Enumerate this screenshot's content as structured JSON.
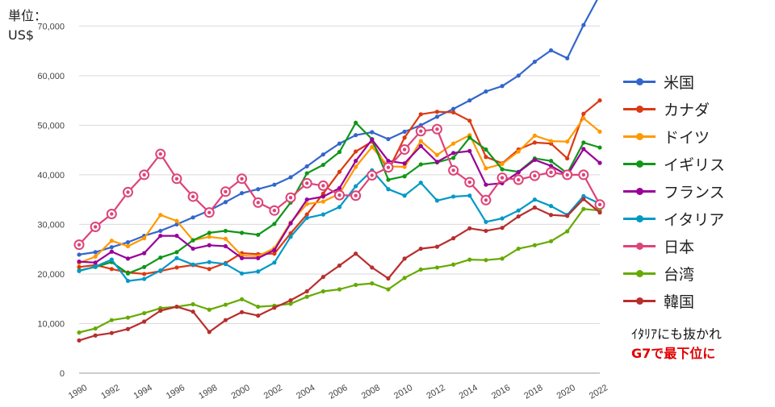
{
  "unit_label": {
    "line1": "単位：",
    "line2": "US$"
  },
  "note": {
    "line1": "ｲﾀﾘｱにも抜かれ",
    "line2": "G7で最下位に"
  },
  "chart_data": {
    "type": "line",
    "title": "",
    "xlabel": "",
    "ylabel": "",
    "x": [
      1990,
      1991,
      1992,
      1993,
      1994,
      1995,
      1996,
      1997,
      1998,
      1999,
      2000,
      2001,
      2002,
      2003,
      2004,
      2005,
      2006,
      2007,
      2008,
      2009,
      2010,
      2011,
      2012,
      2013,
      2014,
      2015,
      2016,
      2017,
      2018,
      2019,
      2020,
      2021,
      2022
    ],
    "xlim": [
      1990,
      2022
    ],
    "ylim": [
      0,
      72000
    ],
    "y_ticks": [
      0,
      10000,
      20000,
      30000,
      40000,
      50000,
      60000,
      70000
    ],
    "y_tick_labels": [
      "0",
      "10,000",
      "20,000",
      "30,000",
      "40,000",
      "50,000",
      "60,000",
      "70,000"
    ],
    "x_ticks": [
      1990,
      1992,
      1994,
      1996,
      1998,
      2000,
      2002,
      2004,
      2006,
      2008,
      2010,
      2012,
      2014,
      2016,
      2018,
      2020,
      2022
    ],
    "x_tick_labels": [
      "1990",
      "1992",
      "1994",
      "1996",
      "1998",
      "2000",
      "2002",
      "2004",
      "2006",
      "2008",
      "2010",
      "2012",
      "2014",
      "2016",
      "2018",
      "2020",
      "2022"
    ],
    "grid": true,
    "legend_position": "right",
    "series": [
      {
        "name": "米国",
        "color": "#3366cc",
        "values": [
          23900,
          24400,
          25400,
          26400,
          27700,
          28700,
          30000,
          31400,
          32800,
          34500,
          36300,
          37100,
          38000,
          39500,
          41700,
          44100,
          46300,
          48000,
          48600,
          47200,
          48700,
          50000,
          51700,
          53300,
          55000,
          56800,
          57900,
          60000,
          62800,
          65100,
          63500,
          70200,
          76300
        ]
      },
      {
        "name": "カナダ",
        "color": "#dc3912",
        "values": [
          21400,
          21800,
          21000,
          20300,
          20000,
          20600,
          21300,
          21800,
          21000,
          22200,
          24200,
          24000,
          24100,
          28200,
          32000,
          36200,
          40600,
          44700,
          46700,
          40900,
          47500,
          52200,
          52700,
          52600,
          50900,
          43600,
          42300,
          45100,
          46500,
          46300,
          43300,
          52300,
          55000
        ]
      },
      {
        "name": "ドイツ",
        "color": "#ff9900",
        "values": [
          22200,
          23500,
          26700,
          25600,
          27200,
          31900,
          30700,
          26800,
          27500,
          27100,
          23700,
          23600,
          25200,
          30400,
          34100,
          34600,
          36200,
          41600,
          45600,
          41700,
          41600,
          46800,
          44000,
          46300,
          48000,
          41300,
          42200,
          44700,
          47900,
          46800,
          46700,
          51400,
          48700
        ]
      },
      {
        "name": "イギリス",
        "color": "#109618",
        "values": [
          20700,
          21400,
          22400,
          20100,
          21400,
          23300,
          24400,
          26800,
          28300,
          28700,
          28300,
          27900,
          30100,
          34400,
          40300,
          42000,
          44600,
          50500,
          47200,
          39000,
          39700,
          42100,
          42500,
          43400,
          47500,
          45100,
          41100,
          40600,
          43300,
          42800,
          40300,
          46500,
          45500
        ]
      },
      {
        "name": "フランス",
        "color": "#990099",
        "values": [
          22500,
          22300,
          24500,
          23100,
          24200,
          27700,
          27700,
          25100,
          25800,
          25600,
          23200,
          23200,
          24800,
          30200,
          35000,
          35600,
          37300,
          42800,
          47100,
          42800,
          42300,
          45800,
          42600,
          44400,
          44800,
          38000,
          38300,
          40500,
          43000,
          41800,
          39900,
          45200,
          42400
        ]
      },
      {
        "name": "イタリア",
        "color": "#0099c6",
        "values": [
          20600,
          21500,
          22900,
          18600,
          19000,
          20700,
          23200,
          21900,
          22400,
          22000,
          20100,
          20500,
          22300,
          27500,
          31300,
          32000,
          33500,
          37700,
          40900,
          37100,
          35800,
          38400,
          34800,
          35600,
          35800,
          30500,
          31200,
          32800,
          35000,
          33700,
          31900,
          35700,
          34200
        ]
      },
      {
        "name": "日本",
        "color": "#dd4477",
        "values": [
          25900,
          29500,
          32100,
          36500,
          40000,
          44200,
          39200,
          35600,
          32400,
          36600,
          39200,
          34400,
          32800,
          35400,
          38300,
          37800,
          35900,
          35800,
          39900,
          41500,
          45100,
          48800,
          49200,
          40900,
          38500,
          34900,
          39400,
          39000,
          39800,
          40500,
          40000,
          40000,
          34000
        ]
      },
      {
        "name": "台湾",
        "color": "#66aa00",
        "values": [
          8200,
          9000,
          10700,
          11200,
          12100,
          13100,
          13400,
          13900,
          12800,
          13800,
          14900,
          13400,
          13600,
          14000,
          15400,
          16500,
          16900,
          17800,
          18100,
          16900,
          19200,
          20900,
          21300,
          21900,
          22900,
          22800,
          23100,
          25100,
          25800,
          26600,
          28600,
          33100,
          32800
        ]
      },
      {
        "name": "韓国",
        "color": "#b82e2e",
        "values": [
          6600,
          7600,
          8100,
          8900,
          10400,
          12600,
          13400,
          12400,
          8300,
          10700,
          12300,
          11600,
          13200,
          14700,
          16500,
          19400,
          21700,
          24100,
          21300,
          19100,
          23100,
          25100,
          25500,
          27200,
          29200,
          28700,
          29300,
          31600,
          33400,
          31900,
          31700,
          35100,
          32400
        ]
      }
    ]
  }
}
